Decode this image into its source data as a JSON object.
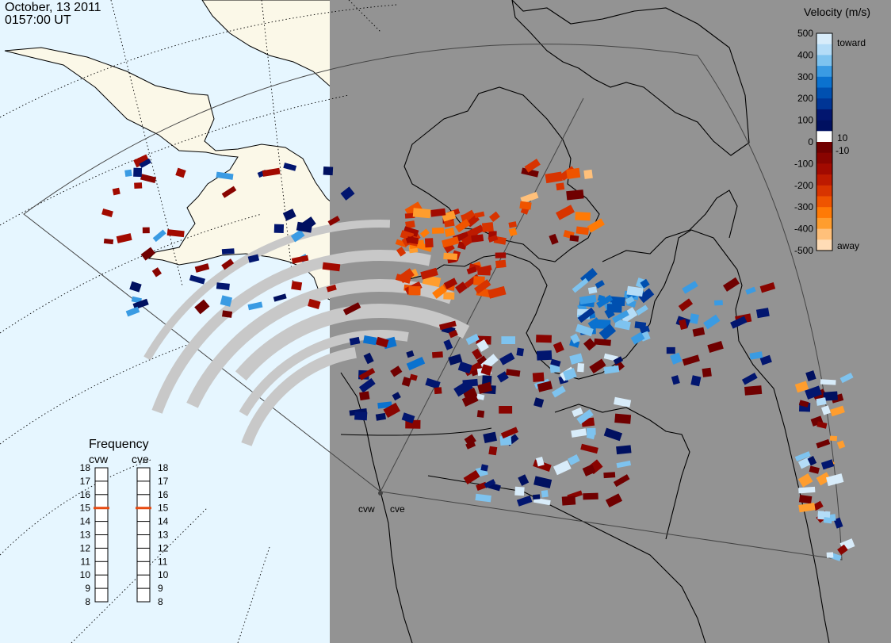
{
  "header": {
    "date": "October, 13 2011",
    "time": "0157:00 UT"
  },
  "colorbar": {
    "title": "Velocity (m/s)",
    "ticks": [
      "500",
      "400",
      "300",
      "200",
      "100",
      "0",
      "-100",
      "-200",
      "-300",
      "-400",
      "-500"
    ],
    "inner_ticks": [
      "10",
      "-10"
    ],
    "toward": "toward",
    "away": "away",
    "colors": [
      "#d8ecfa",
      "#b4dcf7",
      "#7ec3ef",
      "#3a9be3",
      "#0b72cf",
      "#0050b0",
      "#003595",
      "#02166f",
      "#001060",
      "#ffffff",
      "#700000",
      "#890400",
      "#a20a00",
      "#bd1a00",
      "#d83400",
      "#ef5400",
      "#ff7a06",
      "#ff9d2e",
      "#ffc07a",
      "#ffdcb6"
    ]
  },
  "frequency": {
    "title": "Frequency",
    "radars": [
      "cvw",
      "cve"
    ],
    "labels": [
      "18",
      "17",
      "16",
      "15",
      "14",
      "13",
      "12",
      "11",
      "10",
      "9",
      "8"
    ],
    "cvw_mhz": 15,
    "cve_mhz": 15,
    "marker_color": "#e84a10"
  },
  "sites": [
    "cvw",
    "cve"
  ],
  "colors": {
    "ocean": "#e6f6ff",
    "land": "#fbf8e8",
    "shade": "#939393",
    "ground": "#c8c8c8"
  }
}
